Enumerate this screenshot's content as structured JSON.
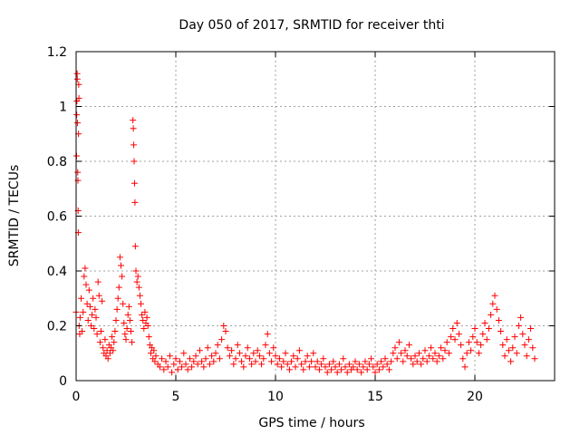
{
  "chart_data": {
    "type": "scatter",
    "title": "Day 050 of 2017, SRMTID for receiver thti",
    "xlabel": "GPS time / hours",
    "ylabel": "SRMTID / TECUs",
    "xlim": [
      0,
      24
    ],
    "ylim": [
      0,
      1.2
    ],
    "xticks": [
      0,
      5,
      10,
      15,
      20
    ],
    "xtick_labels": [
      "0",
      "5",
      "10",
      "15",
      "20"
    ],
    "yticks": [
      0,
      0.2,
      0.4,
      0.6,
      0.8,
      1.0,
      1.2
    ],
    "ytick_labels": [
      "0",
      "0.2",
      "0.4",
      "0.6",
      "0.8",
      "1",
      "1.2"
    ],
    "grid": true,
    "marker": "plus",
    "series": [
      {
        "name": "SRMTID",
        "color": "#ff0000",
        "points": [
          [
            0.0,
            0.25
          ],
          [
            0.02,
            0.82
          ],
          [
            0.03,
            0.97
          ],
          [
            0.04,
            1.02
          ],
          [
            0.05,
            1.12
          ],
          [
            0.06,
            1.1
          ],
          [
            0.07,
            0.94
          ],
          [
            0.08,
            0.76
          ],
          [
            0.09,
            0.73
          ],
          [
            0.1,
            0.62
          ],
          [
            0.11,
            0.54
          ],
          [
            0.12,
            0.9
          ],
          [
            0.13,
            1.08
          ],
          [
            0.14,
            1.03
          ],
          [
            0.15,
            0.2
          ],
          [
            0.18,
            0.17
          ],
          [
            0.2,
            0.23
          ],
          [
            0.25,
            0.3
          ],
          [
            0.3,
            0.18
          ],
          [
            0.35,
            0.25
          ],
          [
            0.4,
            0.38
          ],
          [
            0.45,
            0.41
          ],
          [
            0.5,
            0.35
          ],
          [
            0.55,
            0.28
          ],
          [
            0.6,
            0.22
          ],
          [
            0.65,
            0.33
          ],
          [
            0.7,
            0.27
          ],
          [
            0.75,
            0.2
          ],
          [
            0.8,
            0.24
          ],
          [
            0.85,
            0.3
          ],
          [
            0.9,
            0.19
          ],
          [
            0.95,
            0.26
          ],
          [
            1.0,
            0.23
          ],
          [
            1.05,
            0.17
          ],
          [
            1.1,
            0.36
          ],
          [
            1.15,
            0.31
          ],
          [
            1.2,
            0.14
          ],
          [
            1.25,
            0.18
          ],
          [
            1.3,
            0.29
          ],
          [
            1.35,
            0.12
          ],
          [
            1.4,
            0.1
          ],
          [
            1.45,
            0.15
          ],
          [
            1.5,
            0.09
          ],
          [
            1.55,
            0.11
          ],
          [
            1.6,
            0.08
          ],
          [
            1.65,
            0.13
          ],
          [
            1.7,
            0.1
          ],
          [
            1.75,
            0.12
          ],
          [
            1.8,
            0.16
          ],
          [
            1.85,
            0.11
          ],
          [
            1.9,
            0.14
          ],
          [
            1.95,
            0.18
          ],
          [
            2.0,
            0.22
          ],
          [
            2.05,
            0.26
          ],
          [
            2.1,
            0.3
          ],
          [
            2.15,
            0.34
          ],
          [
            2.2,
            0.45
          ],
          [
            2.25,
            0.42
          ],
          [
            2.3,
            0.38
          ],
          [
            2.35,
            0.28
          ],
          [
            2.4,
            0.21
          ],
          [
            2.45,
            0.17
          ],
          [
            2.5,
            0.15
          ],
          [
            2.55,
            0.19
          ],
          [
            2.6,
            0.24
          ],
          [
            2.65,
            0.27
          ],
          [
            2.7,
            0.22
          ],
          [
            2.75,
            0.18
          ],
          [
            2.8,
            0.14
          ],
          [
            2.85,
            0.95
          ],
          [
            2.87,
            0.92
          ],
          [
            2.89,
            0.86
          ],
          [
            2.91,
            0.8
          ],
          [
            2.93,
            0.72
          ],
          [
            2.95,
            0.65
          ],
          [
            2.97,
            0.49
          ],
          [
            3.0,
            0.4
          ],
          [
            3.05,
            0.36
          ],
          [
            3.1,
            0.38
          ],
          [
            3.15,
            0.34
          ],
          [
            3.2,
            0.31
          ],
          [
            3.25,
            0.28
          ],
          [
            3.3,
            0.24
          ],
          [
            3.35,
            0.22
          ],
          [
            3.4,
            0.19
          ],
          [
            3.45,
            0.25
          ],
          [
            3.5,
            0.21
          ],
          [
            3.55,
            0.23
          ],
          [
            3.6,
            0.2
          ],
          [
            3.65,
            0.16
          ],
          [
            3.7,
            0.13
          ],
          [
            3.75,
            0.1
          ],
          [
            3.8,
            0.12
          ],
          [
            3.85,
            0.08
          ],
          [
            3.9,
            0.11
          ],
          [
            3.95,
            0.07
          ],
          [
            4.0,
            0.09
          ],
          [
            4.1,
            0.06
          ],
          [
            4.2,
            0.05
          ],
          [
            4.3,
            0.08
          ],
          [
            4.4,
            0.04
          ],
          [
            4.5,
            0.07
          ],
          [
            4.6,
            0.05
          ],
          [
            4.7,
            0.09
          ],
          [
            4.8,
            0.03
          ],
          [
            4.9,
            0.06
          ],
          [
            5.0,
            0.08
          ],
          [
            5.1,
            0.04
          ],
          [
            5.2,
            0.07
          ],
          [
            5.3,
            0.05
          ],
          [
            5.4,
            0.1
          ],
          [
            5.5,
            0.06
          ],
          [
            5.6,
            0.04
          ],
          [
            5.7,
            0.08
          ],
          [
            5.8,
            0.05
          ],
          [
            5.9,
            0.07
          ],
          [
            6.0,
            0.09
          ],
          [
            6.1,
            0.06
          ],
          [
            6.2,
            0.11
          ],
          [
            6.3,
            0.07
          ],
          [
            6.4,
            0.05
          ],
          [
            6.5,
            0.08
          ],
          [
            6.6,
            0.12
          ],
          [
            6.7,
            0.06
          ],
          [
            6.8,
            0.09
          ],
          [
            6.9,
            0.07
          ],
          [
            7.0,
            0.1
          ],
          [
            7.1,
            0.13
          ],
          [
            7.2,
            0.08
          ],
          [
            7.3,
            0.15
          ],
          [
            7.4,
            0.2
          ],
          [
            7.5,
            0.18
          ],
          [
            7.6,
            0.12
          ],
          [
            7.7,
            0.09
          ],
          [
            7.8,
            0.11
          ],
          [
            7.9,
            0.06
          ],
          [
            8.0,
            0.08
          ],
          [
            8.1,
            0.13
          ],
          [
            8.2,
            0.1
          ],
          [
            8.3,
            0.07
          ],
          [
            8.4,
            0.05
          ],
          [
            8.5,
            0.09
          ],
          [
            8.6,
            0.12
          ],
          [
            8.7,
            0.08
          ],
          [
            8.8,
            0.06
          ],
          [
            8.9,
            0.1
          ],
          [
            9.0,
            0.07
          ],
          [
            9.1,
            0.11
          ],
          [
            9.2,
            0.09
          ],
          [
            9.3,
            0.06
          ],
          [
            9.4,
            0.08
          ],
          [
            9.5,
            0.13
          ],
          [
            9.6,
            0.17
          ],
          [
            9.7,
            0.1
          ],
          [
            9.8,
            0.07
          ],
          [
            9.9,
            0.12
          ],
          [
            10.0,
            0.09
          ],
          [
            10.1,
            0.06
          ],
          [
            10.2,
            0.08
          ],
          [
            10.3,
            0.05
          ],
          [
            10.4,
            0.07
          ],
          [
            10.5,
            0.1
          ],
          [
            10.6,
            0.06
          ],
          [
            10.7,
            0.04
          ],
          [
            10.8,
            0.07
          ],
          [
            10.9,
            0.09
          ],
          [
            11.0,
            0.05
          ],
          [
            11.1,
            0.08
          ],
          [
            11.2,
            0.11
          ],
          [
            11.3,
            0.06
          ],
          [
            11.4,
            0.04
          ],
          [
            11.5,
            0.07
          ],
          [
            11.6,
            0.09
          ],
          [
            11.7,
            0.05
          ],
          [
            11.8,
            0.07
          ],
          [
            11.9,
            0.1
          ],
          [
            12.0,
            0.05
          ],
          [
            12.1,
            0.07
          ],
          [
            12.2,
            0.04
          ],
          [
            12.3,
            0.06
          ],
          [
            12.4,
            0.08
          ],
          [
            12.5,
            0.05
          ],
          [
            12.6,
            0.03
          ],
          [
            12.7,
            0.06
          ],
          [
            12.8,
            0.04
          ],
          [
            12.9,
            0.07
          ],
          [
            13.0,
            0.05
          ],
          [
            13.1,
            0.03
          ],
          [
            13.2,
            0.06
          ],
          [
            13.3,
            0.04
          ],
          [
            13.4,
            0.08
          ],
          [
            13.5,
            0.05
          ],
          [
            13.6,
            0.03
          ],
          [
            13.7,
            0.06
          ],
          [
            13.8,
            0.04
          ],
          [
            13.9,
            0.05
          ],
          [
            14.0,
            0.07
          ],
          [
            14.1,
            0.04
          ],
          [
            14.2,
            0.06
          ],
          [
            14.3,
            0.03
          ],
          [
            14.4,
            0.05
          ],
          [
            14.5,
            0.07
          ],
          [
            14.6,
            0.04
          ],
          [
            14.7,
            0.06
          ],
          [
            14.8,
            0.08
          ],
          [
            14.9,
            0.05
          ],
          [
            15.0,
            0.03
          ],
          [
            15.1,
            0.06
          ],
          [
            15.2,
            0.04
          ],
          [
            15.3,
            0.07
          ],
          [
            15.4,
            0.05
          ],
          [
            15.5,
            0.08
          ],
          [
            15.6,
            0.06
          ],
          [
            15.7,
            0.04
          ],
          [
            15.8,
            0.07
          ],
          [
            15.9,
            0.1
          ],
          [
            16.0,
            0.12
          ],
          [
            16.1,
            0.08
          ],
          [
            16.2,
            0.14
          ],
          [
            16.3,
            0.1
          ],
          [
            16.4,
            0.07
          ],
          [
            16.5,
            0.11
          ],
          [
            16.6,
            0.09
          ],
          [
            16.7,
            0.13
          ],
          [
            16.8,
            0.08
          ],
          [
            16.9,
            0.06
          ],
          [
            17.0,
            0.09
          ],
          [
            17.1,
            0.07
          ],
          [
            17.2,
            0.1
          ],
          [
            17.3,
            0.06
          ],
          [
            17.4,
            0.08
          ],
          [
            17.5,
            0.11
          ],
          [
            17.6,
            0.07
          ],
          [
            17.7,
            0.09
          ],
          [
            17.8,
            0.12
          ],
          [
            17.9,
            0.08
          ],
          [
            18.0,
            0.1
          ],
          [
            18.1,
            0.07
          ],
          [
            18.2,
            0.09
          ],
          [
            18.3,
            0.12
          ],
          [
            18.4,
            0.08
          ],
          [
            18.5,
            0.11
          ],
          [
            18.6,
            0.14
          ],
          [
            18.7,
            0.1
          ],
          [
            18.8,
            0.16
          ],
          [
            18.9,
            0.19
          ],
          [
            19.0,
            0.15
          ],
          [
            19.1,
            0.21
          ],
          [
            19.2,
            0.17
          ],
          [
            19.3,
            0.13
          ],
          [
            19.4,
            0.08
          ],
          [
            19.5,
            0.05
          ],
          [
            19.6,
            0.1
          ],
          [
            19.7,
            0.14
          ],
          [
            19.8,
            0.11
          ],
          [
            19.9,
            0.16
          ],
          [
            20.0,
            0.19
          ],
          [
            20.1,
            0.14
          ],
          [
            20.2,
            0.1
          ],
          [
            20.3,
            0.13
          ],
          [
            20.4,
            0.17
          ],
          [
            20.5,
            0.21
          ],
          [
            20.6,
            0.15
          ],
          [
            20.7,
            0.19
          ],
          [
            20.8,
            0.24
          ],
          [
            20.9,
            0.28
          ],
          [
            21.0,
            0.31
          ],
          [
            21.1,
            0.26
          ],
          [
            21.2,
            0.22
          ],
          [
            21.3,
            0.18
          ],
          [
            21.4,
            0.13
          ],
          [
            21.5,
            0.09
          ],
          [
            21.6,
            0.15
          ],
          [
            21.7,
            0.11
          ],
          [
            21.8,
            0.07
          ],
          [
            21.9,
            0.12
          ],
          [
            22.0,
            0.16
          ],
          [
            22.1,
            0.1
          ],
          [
            22.2,
            0.2
          ],
          [
            22.3,
            0.23
          ],
          [
            22.4,
            0.17
          ],
          [
            22.5,
            0.13
          ],
          [
            22.6,
            0.09
          ],
          [
            22.7,
            0.15
          ],
          [
            22.8,
            0.19
          ],
          [
            22.9,
            0.12
          ],
          [
            23.0,
            0.08
          ]
        ]
      }
    ]
  }
}
